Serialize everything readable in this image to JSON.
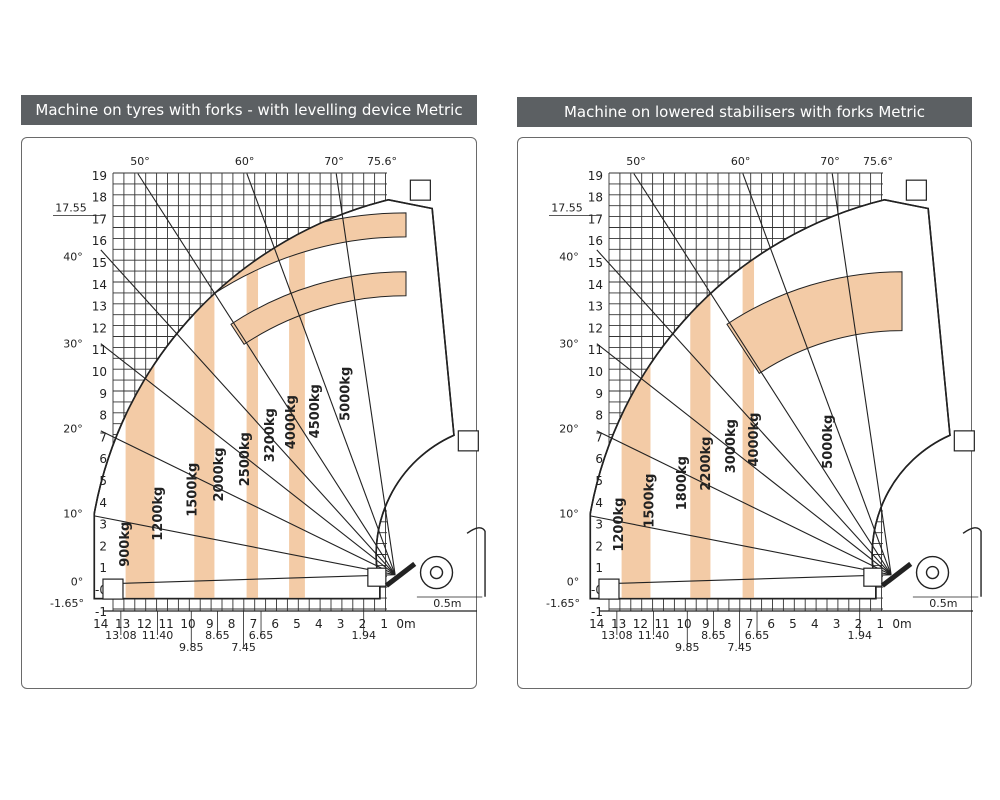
{
  "colors": {
    "header_bg": "#5c6063",
    "header_text": "#ffffff",
    "zone_fill": "#f3cba6",
    "line": "#222222",
    "grid": "#333333"
  },
  "panels": [
    {
      "title": "Machine on tyres with forks - with levelling device Metric",
      "y_ticks": [
        "-1",
        "-0",
        "1",
        "2",
        "3",
        "4",
        "5",
        "6",
        "7",
        "8",
        "9",
        "10",
        "11",
        "12",
        "13",
        "14",
        "15",
        "16",
        "17",
        "18",
        "19"
      ],
      "x_ticks": [
        "14",
        "13",
        "12",
        "11",
        "10",
        "9",
        "8",
        "7",
        "6",
        "5",
        "4",
        "3",
        "2",
        "1",
        "0m"
      ],
      "x_minor_labels": [
        "13.08",
        "11.40",
        "9.85",
        "8.65",
        "7.45",
        "6.65",
        "1.94"
      ],
      "angle_labels": [
        "-1.65°",
        "0°",
        "10°",
        "20°",
        "30°",
        "40°",
        "50°",
        "60°",
        "70°",
        "75.6°"
      ],
      "max_height_label": "17.55",
      "scale_label": "0.5m",
      "load_zones": [
        "900kg",
        "1200kg",
        "1500kg",
        "2000kg",
        "2500kg",
        "3200kg",
        "4000kg",
        "4500kg",
        "5000kg"
      ]
    },
    {
      "title": "Machine on lowered stabilisers with forks Metric",
      "y_ticks": [
        "-1",
        "-0",
        "1",
        "2",
        "3",
        "4",
        "5",
        "6",
        "7",
        "8",
        "9",
        "10",
        "11",
        "12",
        "13",
        "14",
        "15",
        "16",
        "17",
        "18",
        "19"
      ],
      "x_ticks": [
        "14",
        "13",
        "12",
        "11",
        "10",
        "9",
        "8",
        "7",
        "6",
        "5",
        "4",
        "3",
        "2",
        "1",
        "0m"
      ],
      "x_minor_labels": [
        "13.08",
        "11.40",
        "9.85",
        "8.65",
        "7.45",
        "6.65",
        "1.94"
      ],
      "angle_labels": [
        "-1.65°",
        "0°",
        "10°",
        "20°",
        "30°",
        "40°",
        "50°",
        "60°",
        "70°",
        "75.6°"
      ],
      "max_height_label": "17.55",
      "scale_label": "0.5m",
      "load_zones": [
        "1200kg",
        "1500kg",
        "1800kg",
        "2200kg",
        "3000kg",
        "4000kg",
        "5000kg"
      ]
    }
  ]
}
